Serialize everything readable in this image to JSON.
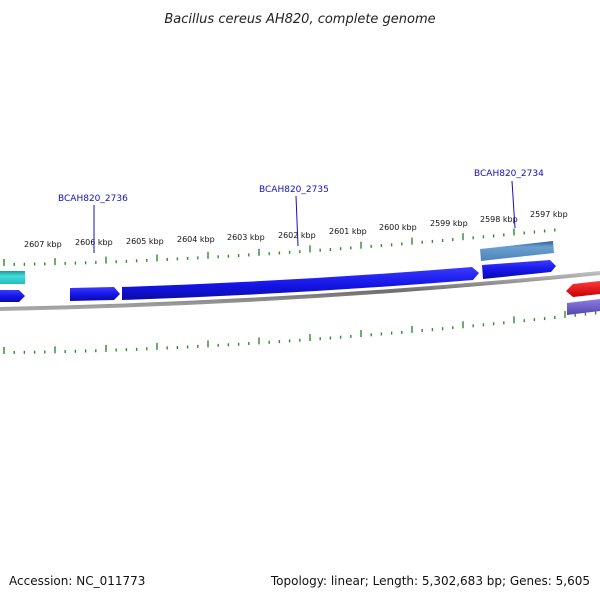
{
  "title": "Bacillus cereus AH820, complete genome",
  "footer": {
    "accession": "Accession: NC_011773",
    "summary": "Topology: linear; Length: 5,302,683 bp; Genes: 5,605"
  },
  "colors": {
    "backbone": "#8a8a8a",
    "tick": "#2e8b2e",
    "gene_label": "#1010c0",
    "forward_gene": "#1a1aee",
    "highlight_gene": "#5b8fc0",
    "cyan_gene": "#2cc9c9",
    "red_gene": "#ee1111",
    "purple_gene": "#6f5fc8"
  },
  "ticks": [
    {
      "label": "2607 kbp"
    },
    {
      "label": "2606 kbp"
    },
    {
      "label": "2605 kbp"
    },
    {
      "label": "2604 kbp"
    },
    {
      "label": "2603 kbp"
    },
    {
      "label": "2602 kbp"
    },
    {
      "label": "2601 kbp"
    },
    {
      "label": "2600 kbp"
    },
    {
      "label": "2599 kbp"
    },
    {
      "label": "2598 kbp"
    },
    {
      "label": "2597 kbp"
    }
  ],
  "genes": [
    {
      "label": "BCAH820_2736"
    },
    {
      "label": "BCAH820_2735"
    },
    {
      "label": "BCAH820_2734"
    }
  ]
}
